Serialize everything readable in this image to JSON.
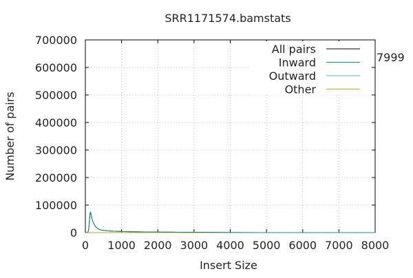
{
  "chart_data": {
    "type": "line",
    "title": "SRR1171574.bamstats",
    "xlabel": "Insert Size",
    "ylabel": "Number of pairs",
    "xlim": [
      0,
      8000
    ],
    "ylim": [
      0,
      700000
    ],
    "x_ticks": [
      "0",
      "1000",
      "2000",
      "3000",
      "4000",
      "5000",
      "6000",
      "7000",
      "8000"
    ],
    "y_ticks": [
      "0",
      "100000",
      "200000",
      "300000",
      "400000",
      "500000",
      "600000",
      "700000"
    ],
    "grid": true,
    "legend_position": "top-right",
    "stray_label": "7999",
    "series": [
      {
        "name": "All pairs",
        "color": "#000000",
        "x": [
          0,
          60,
          80,
          100,
          110,
          120,
          130,
          140,
          150,
          160,
          180,
          200,
          230,
          260,
          300,
          350,
          400,
          450,
          500,
          600,
          700,
          800,
          1000,
          1200,
          1500,
          2000,
          2500,
          3000,
          3500,
          4000,
          5000,
          6000,
          7000,
          7999
        ],
        "y": [
          0,
          300,
          4000,
          20000,
          40000,
          58000,
          70000,
          74000,
          71000,
          64000,
          52000,
          42000,
          33000,
          26000,
          19000,
          14000,
          11000,
          9000,
          8000,
          6500,
          5500,
          5000,
          4200,
          3500,
          2800,
          2000,
          1400,
          900,
          500,
          250,
          80,
          30,
          10,
          0
        ]
      },
      {
        "name": "Inward",
        "color": "#009e73",
        "x": [
          0,
          60,
          80,
          100,
          110,
          120,
          130,
          140,
          150,
          160,
          180,
          200,
          230,
          260,
          300,
          350,
          400,
          450,
          500,
          600,
          700,
          800,
          1000,
          1200,
          1500,
          2000,
          2500,
          3000,
          3500,
          4000,
          5000,
          6000,
          7000,
          7999
        ],
        "y": [
          0,
          300,
          4000,
          20000,
          40000,
          58000,
          70000,
          74000,
          71000,
          64000,
          52000,
          42000,
          33000,
          26000,
          19000,
          14000,
          11000,
          9000,
          8000,
          6500,
          5500,
          5000,
          4200,
          3500,
          2800,
          2000,
          1400,
          900,
          500,
          250,
          80,
          30,
          10,
          0
        ]
      },
      {
        "name": "Outward",
        "color": "#56b4e9",
        "x": [
          0,
          1000,
          2000,
          3000,
          4000,
          5000,
          6000,
          7000,
          7999
        ],
        "y": [
          0,
          200,
          150,
          100,
          50,
          20,
          10,
          5,
          0
        ]
      },
      {
        "name": "Other",
        "color": "#e69f00",
        "x": [
          0,
          1000,
          2000,
          3000,
          4000,
          5000,
          6000,
          7000,
          7999
        ],
        "y": [
          0,
          100,
          80,
          50,
          30,
          10,
          5,
          2,
          0
        ]
      }
    ]
  }
}
